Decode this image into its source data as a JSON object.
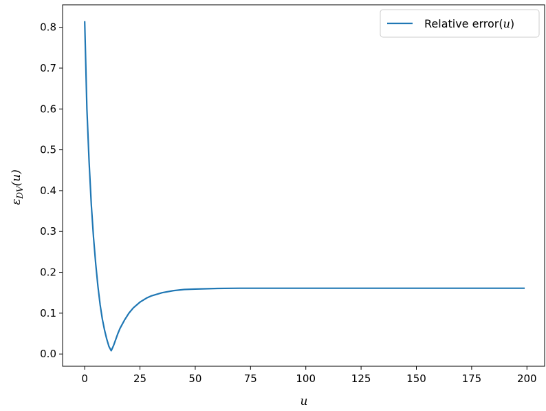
{
  "chart_data": {
    "type": "line",
    "xlabel": "u",
    "ylabel": "ε",
    "ylabel_sub": "DV",
    "ylabel_tail": "(u)",
    "xlim": [
      -10,
      208
    ],
    "ylim": [
      -0.03,
      0.855
    ],
    "xticks": [
      0,
      25,
      50,
      75,
      100,
      125,
      150,
      175,
      200
    ],
    "yticks": [
      0.0,
      0.1,
      0.2,
      0.3,
      0.4,
      0.5,
      0.6,
      0.7,
      0.8
    ],
    "xtick_labels": [
      "0",
      "25",
      "50",
      "75",
      "100",
      "125",
      "150",
      "175",
      "200"
    ],
    "ytick_labels": [
      "0.0",
      "0.1",
      "0.2",
      "0.3",
      "0.4",
      "0.5",
      "0.6",
      "0.7",
      "0.8"
    ],
    "legend": {
      "position": "top-right",
      "label": "Relative error(",
      "label_var": "u",
      "label_tail": ")"
    },
    "colors": {
      "series": "#1f77b4",
      "axes": "#000000"
    },
    "series": [
      {
        "name": "Relative error(u)",
        "x": [
          0,
          1,
          2,
          3,
          4,
          5,
          6,
          7,
          8,
          9,
          10,
          11,
          12,
          13,
          14,
          15,
          16,
          18,
          20,
          22,
          25,
          28,
          30,
          35,
          40,
          45,
          50,
          60,
          70,
          80,
          100,
          125,
          150,
          175,
          199
        ],
        "y": [
          0.815,
          0.6,
          0.47,
          0.365,
          0.285,
          0.22,
          0.165,
          0.12,
          0.085,
          0.058,
          0.036,
          0.018,
          0.008,
          0.02,
          0.035,
          0.05,
          0.063,
          0.083,
          0.1,
          0.113,
          0.127,
          0.137,
          0.142,
          0.15,
          0.155,
          0.158,
          0.159,
          0.1605,
          0.161,
          0.161,
          0.161,
          0.161,
          0.161,
          0.161,
          0.161
        ]
      }
    ]
  }
}
